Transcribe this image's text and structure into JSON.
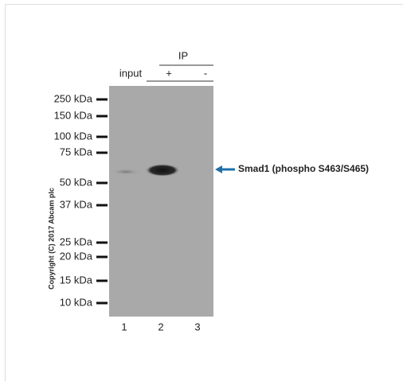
{
  "header": {
    "ip": "IP",
    "input": "input",
    "plus": "+",
    "minus": "-"
  },
  "markers": [
    "250 kDa",
    "150 kDa",
    "100 kDa",
    "75 kDa",
    "50 kDa",
    "37 kDa",
    "25 kDa",
    "20 kDa",
    "15 kDa",
    "10 kDa"
  ],
  "lanes": [
    "1",
    "2",
    "3"
  ],
  "annotation": "Smad1 (phospho S463/S465)",
  "copyright": "Copyright (C) 2017 Abcam plc"
}
